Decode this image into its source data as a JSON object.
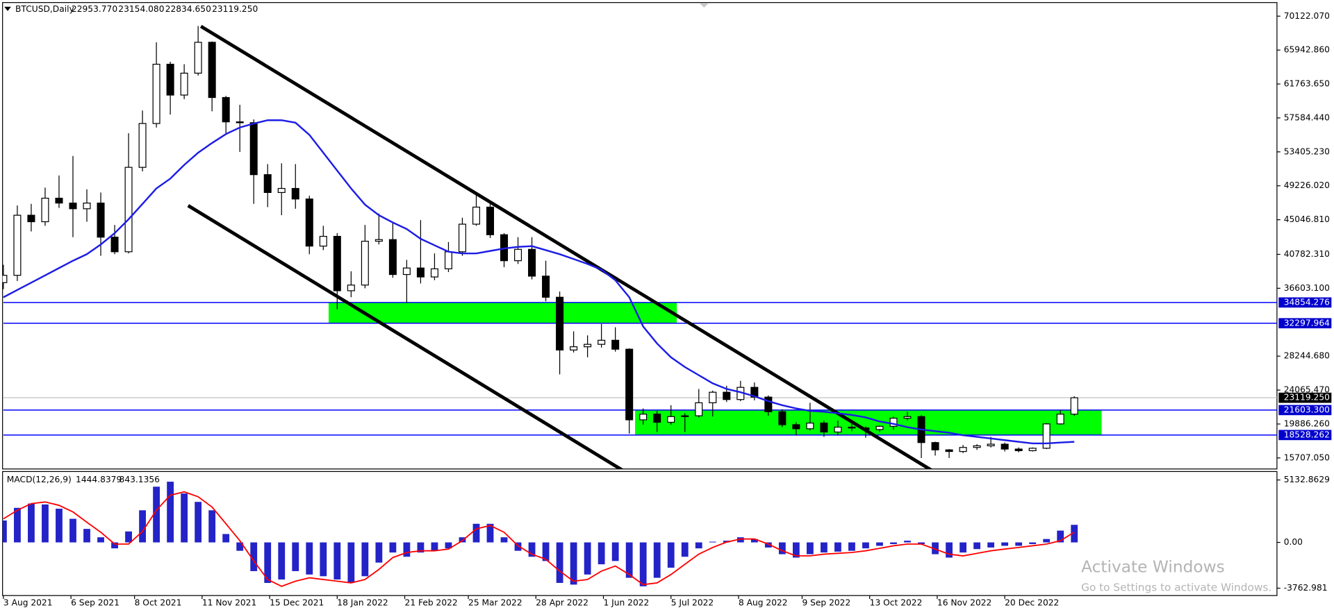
{
  "chart_data": [
    {
      "type": "candlestick",
      "title": "BTCUSD,Daily",
      "header_values": [
        {
          "value": 22953.77,
          "label": "22953.770"
        },
        {
          "value": 23154.08,
          "label": "23154.080"
        },
        {
          "value": 22834.65,
          "label": "22834.650"
        },
        {
          "value": 23119.25,
          "label": "23119.250"
        }
      ],
      "x": [
        "2021-08-03",
        "2021-08-10",
        "2021-08-17",
        "2021-08-24",
        "2021-08-31",
        "2021-09-07",
        "2021-09-14",
        "2021-09-21",
        "2021-09-28",
        "2021-10-05",
        "2021-10-12",
        "2021-10-19",
        "2021-10-26",
        "2021-11-02",
        "2021-11-09",
        "2021-11-16",
        "2021-11-23",
        "2021-11-30",
        "2021-12-07",
        "2021-12-14",
        "2021-12-21",
        "2021-12-28",
        "2022-01-04",
        "2022-01-11",
        "2022-01-18",
        "2022-01-25",
        "2022-02-01",
        "2022-02-08",
        "2022-02-15",
        "2022-02-22",
        "2022-03-01",
        "2022-03-08",
        "2022-03-15",
        "2022-03-22",
        "2022-03-29",
        "2022-04-05",
        "2022-04-12",
        "2022-04-19",
        "2022-04-26",
        "2022-05-03",
        "2022-05-10",
        "2022-05-17",
        "2022-05-24",
        "2022-05-31",
        "2022-06-07",
        "2022-06-14",
        "2022-06-21",
        "2022-06-28",
        "2022-07-05",
        "2022-07-12",
        "2022-07-19",
        "2022-07-26",
        "2022-08-02",
        "2022-08-09",
        "2022-08-16",
        "2022-08-23",
        "2022-08-30",
        "2022-09-06",
        "2022-09-13",
        "2022-09-20",
        "2022-09-27",
        "2022-10-04",
        "2022-10-11",
        "2022-10-18",
        "2022-10-25",
        "2022-11-01",
        "2022-11-08",
        "2022-11-15",
        "2022-11-22",
        "2022-11-29",
        "2022-12-06",
        "2022-12-13",
        "2022-12-20",
        "2022-12-27",
        "2023-01-03",
        "2023-01-10",
        "2023-01-17",
        "2023-01-24"
      ],
      "open": [
        37300,
        38200,
        45600,
        44800,
        47700,
        47100,
        46400,
        47100,
        42900,
        41100,
        51500,
        56900,
        64200,
        60400,
        63100,
        66900,
        60100,
        57100,
        57000,
        50600,
        48400,
        48900,
        47600,
        41800,
        43000,
        36300,
        37000,
        42400,
        42600,
        38300,
        39100,
        38000,
        39000,
        41100,
        44500,
        46600,
        43200,
        40000,
        41400,
        38100,
        35500,
        29000,
        29400,
        29700,
        30200,
        29100,
        20400,
        21100,
        20100,
        20800,
        20900,
        22500,
        23800,
        22900,
        24400,
        23200,
        21400,
        19800,
        19300,
        20000,
        18900,
        19500,
        19400,
        19200,
        19600,
        20600,
        20800,
        17600,
        16700,
        16500,
        17000,
        17200,
        17400,
        16800,
        16600,
        16900,
        19900,
        21100
      ],
      "high": [
        39500,
        46800,
        47000,
        49000,
        50500,
        52900,
        48800,
        48400,
        44400,
        55700,
        58500,
        66900,
        64500,
        64200,
        68900,
        67000,
        60300,
        59200,
        57400,
        51900,
        52000,
        51900,
        48000,
        44300,
        43400,
        38700,
        44400,
        45800,
        44800,
        40100,
        45000,
        40900,
        42300,
        45300,
        48200,
        47100,
        43400,
        42900,
        42900,
        40000,
        36200,
        31300,
        30800,
        32200,
        31800,
        29200,
        21800,
        21500,
        22200,
        21200,
        24200,
        24000,
        24600,
        25200,
        25000,
        23400,
        21700,
        20100,
        22500,
        20300,
        20300,
        20400,
        19600,
        19700,
        20800,
        21400,
        21000,
        17700,
        16800,
        17300,
        17400,
        18300,
        17600,
        17000,
        17000,
        20000,
        21600,
        23300
      ],
      "low": [
        36500,
        37500,
        43600,
        44300,
        46500,
        42900,
        44800,
        40600,
        40800,
        40900,
        51000,
        56400,
        58000,
        59900,
        62800,
        58400,
        55700,
        53400,
        47000,
        46600,
        45600,
        46400,
        40800,
        41300,
        34000,
        35500,
        36600,
        42000,
        37900,
        34800,
        37200,
        37600,
        38600,
        40600,
        44300,
        42800,
        39200,
        39600,
        37700,
        35000,
        26000,
        28700,
        28100,
        29300,
        28800,
        18700,
        19800,
        18900,
        19800,
        18900,
        20700,
        20800,
        22600,
        22700,
        22800,
        20900,
        19500,
        18500,
        19100,
        18300,
        18500,
        19000,
        18200,
        18900,
        19200,
        20300,
        15700,
        16000,
        15700,
        16300,
        16700,
        17000,
        16500,
        16400,
        16500,
        16800,
        19800,
        20900
      ],
      "close": [
        38200,
        45600,
        44800,
        47700,
        47100,
        46400,
        47100,
        42900,
        41100,
        51500,
        56900,
        64200,
        60400,
        63100,
        66900,
        60100,
        57100,
        57000,
        50600,
        48400,
        48900,
        47600,
        41800,
        43000,
        36300,
        37000,
        42400,
        42600,
        38300,
        39100,
        38000,
        39000,
        41100,
        44500,
        46600,
        43200,
        40000,
        41400,
        38100,
        35500,
        29000,
        29400,
        29700,
        30200,
        29100,
        20400,
        21100,
        20100,
        20800,
        20900,
        22500,
        23800,
        22900,
        24400,
        23200,
        21400,
        19800,
        19300,
        20000,
        18900,
        19500,
        19400,
        19200,
        19600,
        20600,
        20800,
        17600,
        16700,
        16500,
        17000,
        17200,
        17400,
        16800,
        16600,
        16900,
        19900,
        21100,
        23119.25
      ],
      "up_color": "#ffffff",
      "down_color": "#000000",
      "ma": {
        "color": "#1c1ce6",
        "values": [
          35500,
          36400,
          37300,
          38200,
          39100,
          40000,
          40800,
          42000,
          43400,
          45100,
          47000,
          48900,
          50100,
          51800,
          53300,
          54500,
          55600,
          56400,
          56900,
          57300,
          57300,
          57000,
          55500,
          53300,
          51100,
          48900,
          46900,
          45600,
          44700,
          43900,
          42700,
          41900,
          41100,
          40900,
          40900,
          41200,
          41500,
          41700,
          41800,
          41300,
          40800,
          40200,
          39600,
          38900,
          37600,
          35500,
          31900,
          29800,
          28100,
          26900,
          25900,
          24900,
          24200,
          23800,
          23300,
          22700,
          22200,
          21800,
          21500,
          21400,
          21200,
          21000,
          20700,
          20200,
          19900,
          19500,
          19200,
          19000,
          18800,
          18500,
          18300,
          18100,
          17900,
          17700,
          17500,
          17500,
          17600,
          17700
        ]
      },
      "levels": [
        {
          "value": 34854.276,
          "label": "34854.276"
        },
        {
          "value": 32297.964,
          "label": "32297.964"
        },
        {
          "value": 21603.3,
          "label": "21603.300"
        },
        {
          "value": 18528.262,
          "label": "18528.262"
        }
      ],
      "level_color": "#0000ff",
      "zone_color": "#00ff00",
      "current_price": {
        "value": 23119.25,
        "label": "23119.250"
      },
      "xlim": [
        "2021-08-03",
        "2023-05-06"
      ],
      "xticks": [
        {
          "value": "2021-08-03",
          "label": "3 Aug 2021"
        },
        {
          "value": "2021-09-06",
          "label": "6 Sep 2021"
        },
        {
          "value": "2021-10-08",
          "label": "8 Oct 2021"
        },
        {
          "value": "2021-11-11",
          "label": "11 Nov 2021"
        },
        {
          "value": "2021-12-15",
          "label": "15 Dec 2021"
        },
        {
          "value": "2022-01-18",
          "label": "18 Jan 2022"
        },
        {
          "value": "2022-02-21",
          "label": "21 Feb 2022"
        },
        {
          "value": "2022-03-25",
          "label": "25 Mar 2022"
        },
        {
          "value": "2022-04-28",
          "label": "28 Apr 2022"
        },
        {
          "value": "2022-06-01",
          "label": "1 Jun 2022"
        },
        {
          "value": "2022-07-05",
          "label": "5 Jul 2022"
        },
        {
          "value": "2022-08-08",
          "label": "8 Aug 2022"
        },
        {
          "value": "2022-09-09",
          "label": "9 Sep 2022"
        },
        {
          "value": "2022-10-13",
          "label": "13 Oct 2022"
        },
        {
          "value": "2022-11-16",
          "label": "16 Nov 2022"
        },
        {
          "value": "2022-12-20",
          "label": "20 Dec 2022"
        }
      ],
      "ylim": [
        14452,
        71692
      ],
      "yticks": [
        {
          "value": 70122.07,
          "label": "70122.070"
        },
        {
          "value": 65942.86,
          "label": "65942.860"
        },
        {
          "value": 61763.65,
          "label": "61763.650"
        },
        {
          "value": 57584.44,
          "label": "57584.440"
        },
        {
          "value": 53405.23,
          "label": "53405.230"
        },
        {
          "value": 49226.02,
          "label": "49226.020"
        },
        {
          "value": 45046.81,
          "label": "45046.810"
        },
        {
          "value": 40782.31,
          "label": "40782.310"
        },
        {
          "value": 36603.1,
          "label": "36603.100"
        },
        {
          "value": 28244.68,
          "label": "28244.680"
        },
        {
          "value": 24065.47,
          "label": "24065.470"
        },
        {
          "value": 19886.26,
          "label": "19886.260"
        },
        {
          "value": 15707.05,
          "label": "15707.050"
        }
      ]
    },
    {
      "type": "macd",
      "title": "MACD(12,26,9)",
      "current": [
        1444.8379,
        843.1356
      ],
      "histogram": {
        "color": "#2323c8",
        "values": [
          1800,
          2840,
          3190,
          3120,
          2770,
          1940,
          1110,
          420,
          -490,
          900,
          2640,
          4580,
          4990,
          4020,
          3330,
          2640,
          690,
          -690,
          -2360,
          -3330,
          -3050,
          -2360,
          -2640,
          -2780,
          -3050,
          -3330,
          -2780,
          -1660,
          -830,
          -1180,
          -830,
          -690,
          -490,
          420,
          1530,
          1530,
          420,
          -690,
          -1180,
          -1530,
          -3330,
          -3470,
          -2640,
          -1800,
          -1530,
          -2910,
          -3610,
          -2910,
          -2080,
          -1180,
          -490,
          60,
          140,
          420,
          280,
          -420,
          -970,
          -1250,
          -970,
          -830,
          -760,
          -690,
          -490,
          -280,
          -140,
          140,
          -140,
          -970,
          -1250,
          -830,
          -550,
          -420,
          -280,
          -280,
          -140,
          280,
          970,
          1444.8379
        ]
      },
      "signal": {
        "color": "#ff0000",
        "values": [
          1940,
          2640,
          3190,
          3330,
          3050,
          2500,
          1660,
          830,
          -140,
          -140,
          900,
          2640,
          3880,
          4160,
          3750,
          2910,
          1530,
          140,
          -1530,
          -3050,
          -3610,
          -3190,
          -2910,
          -3050,
          -3190,
          -3330,
          -3050,
          -2220,
          -1250,
          -830,
          -690,
          -690,
          -550,
          140,
          1110,
          1390,
          830,
          -280,
          -970,
          -1390,
          -2360,
          -3190,
          -3050,
          -2360,
          -1940,
          -2640,
          -3470,
          -3330,
          -2640,
          -1800,
          -970,
          -420,
          20,
          280,
          280,
          -140,
          -690,
          -1110,
          -1110,
          -970,
          -900,
          -830,
          -690,
          -490,
          -280,
          -140,
          -140,
          -550,
          -970,
          -1110,
          -900,
          -690,
          -550,
          -420,
          -280,
          -140,
          140,
          843.1356
        ]
      },
      "ylim": [
        -4370,
        5757
      ],
      "yticks": [
        5132.8629,
        {
          "value": 0,
          "label": "0.00"
        },
        -3762.981
      ]
    }
  ],
  "overlay": {
    "title": "Activate Windows",
    "subtitle": "Go to Settings to activate Windows."
  }
}
